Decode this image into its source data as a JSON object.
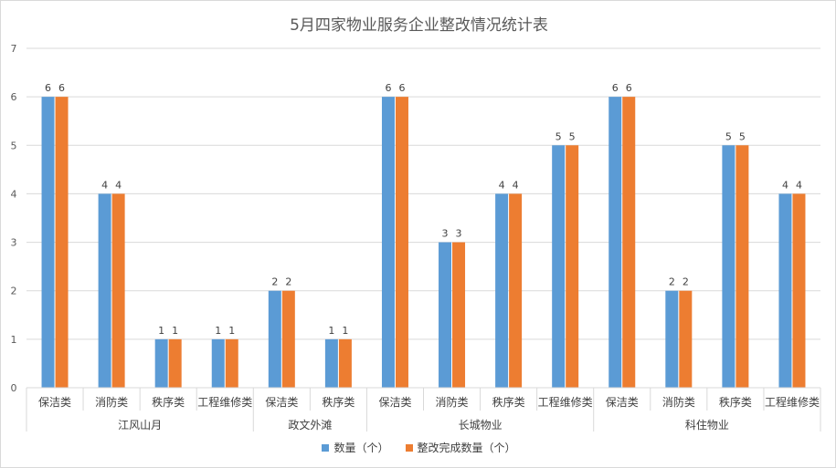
{
  "chart_data": {
    "type": "bar",
    "title": "5月四家物业服务企业整改情况统计表",
    "xlabel": "",
    "ylabel": "",
    "ylim": [
      0,
      7
    ],
    "yticks": [
      "0",
      "1",
      "2",
      "3",
      "4",
      "5",
      "6",
      "7"
    ],
    "grid": true,
    "legend_position": "bottom",
    "groups": [
      {
        "name": "江风山月",
        "categories": [
          "保洁类",
          "消防类",
          "秩序类",
          "工程维修类"
        ]
      },
      {
        "name": "政文外滩",
        "categories": [
          "保洁类",
          "秩序类"
        ]
      },
      {
        "name": "长城物业",
        "categories": [
          "保洁类",
          "消防类",
          "秩序类",
          "工程维修类"
        ]
      },
      {
        "name": "科住物业",
        "categories": [
          "保洁类",
          "消防类",
          "秩序类",
          "工程维修类"
        ]
      }
    ],
    "series": [
      {
        "name": "数量（个）",
        "color": "#5b9bd5",
        "values": [
          6,
          4,
          1,
          1,
          2,
          1,
          6,
          3,
          4,
          5,
          6,
          2,
          5,
          4
        ],
        "labels": [
          "6",
          "4",
          "1",
          "1",
          "2",
          "1",
          "6",
          "3",
          "4",
          "5",
          "6",
          "2",
          "5",
          "4"
        ]
      },
      {
        "name": "整改完成数量（个）",
        "color": "#ed7d31",
        "values": [
          6,
          4,
          1,
          1,
          2,
          1,
          6,
          3,
          4,
          5,
          6,
          2,
          5,
          4
        ],
        "labels": [
          "6",
          "4",
          "1",
          "1",
          "2",
          "1",
          "6",
          "3",
          "4",
          "5",
          "6",
          "2",
          "5",
          "4"
        ]
      }
    ]
  }
}
